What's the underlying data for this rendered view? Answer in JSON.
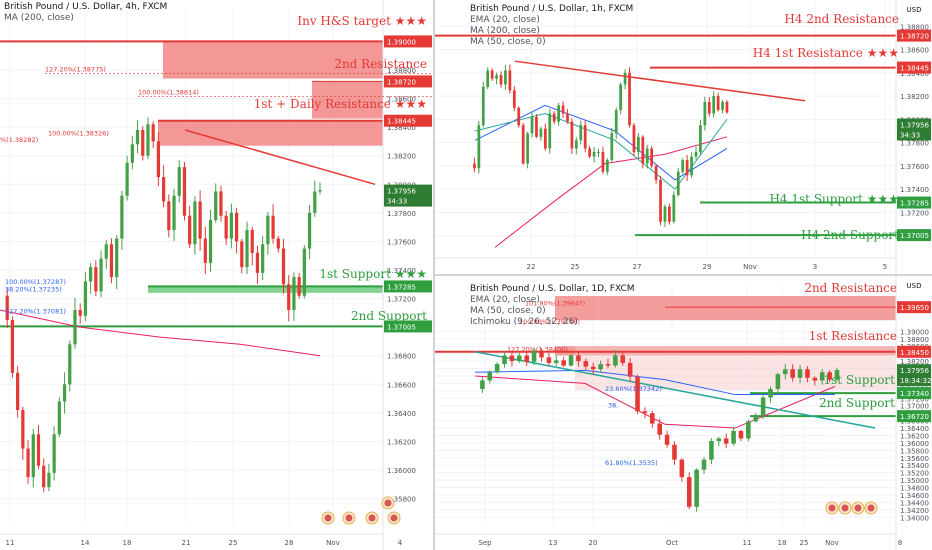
{
  "colors": {
    "up": "#43a047",
    "down": "#e53935",
    "resistance": "#e53935",
    "support": "#2e9e3f",
    "zone_red": "#f28c8c",
    "zone_green": "#7bd08a",
    "ema": "#2962ff",
    "ma200": "#e91e63",
    "ma50": "#26a69a",
    "price_tag": "#2e7d32"
  },
  "usd_label": "USD",
  "left": {
    "symbol": "British Pound / U.S. Dollar, 4h, FXCM",
    "indicator": "MA (200, close)",
    "labels": {
      "target": "Inv H&S target ★★★",
      "res2": "2nd Resistance",
      "res1": "1st + Daily Resistance ★★★",
      "sup1": "1st Support ★★★",
      "sup2": "2nd Support"
    },
    "fib_labels": [
      "127.20%(1.38775)",
      "100.00%(1.38614)",
      "100.00%(1.38326)",
      "%(1.38282)",
      "38.20%(1.37235)",
      "100.00%(1.37287)",
      "127.20%(1.37081)"
    ],
    "levels_text": {
      "target": "1.39000",
      "res2": "1.38720",
      "res1": "1.38445",
      "price": "1.37956",
      "countdown": "34:33",
      "sup1": "1.37285",
      "sup2": "1.37005"
    },
    "axis_ticks": [
      "1.39000",
      "1.38800",
      "1.38600",
      "1.38400",
      "1.38200",
      "1.38000",
      "1.37800",
      "1.37600",
      "1.37400",
      "1.37200",
      "1.37000",
      "1.36800",
      "1.36600",
      "1.36400",
      "1.36200",
      "1.36000",
      "1.35800"
    ],
    "time_ticks": [
      "11",
      "14",
      "18",
      "21",
      "25",
      "28",
      "Nov",
      "4"
    ],
    "chart_data": {
      "type": "candlestick",
      "title": "British Pound / U.S. Dollar, 4h, FXCM",
      "ylim": [
        1.3565,
        1.3915
      ],
      "levels": {
        "target": 1.39,
        "res2": 1.3872,
        "res1": 1.38445,
        "sup1": 1.37285,
        "sup2": 1.37005,
        "price": 1.37956
      },
      "closes": [
        1.3722,
        1.3705,
        1.3668,
        1.3642,
        1.3615,
        1.3595,
        1.3625,
        1.3603,
        1.3588,
        1.3598,
        1.3625,
        1.3648,
        1.366,
        1.3688,
        1.3712,
        1.3708,
        1.3732,
        1.3742,
        1.3725,
        1.3748,
        1.3758,
        1.3735,
        1.3762,
        1.3792,
        1.3815,
        1.3828,
        1.3838,
        1.382,
        1.3842,
        1.383,
        1.3805,
        1.3788,
        1.3768,
        1.3792,
        1.3812,
        1.3778,
        1.3758,
        1.3788,
        1.3762,
        1.3745,
        1.3775,
        1.3795,
        1.3778,
        1.3762,
        1.378,
        1.376,
        1.3742,
        1.3768,
        1.3752,
        1.3738,
        1.3758,
        1.3778,
        1.3762,
        1.3755,
        1.373,
        1.3712,
        1.3735,
        1.3722,
        1.3755,
        1.378,
        1.3795,
        1.3796
      ]
    }
  },
  "top_right": {
    "symbol": "British Pound / U.S. Dollar, 1h, FXCM",
    "indicators": [
      "EMA (20, close)",
      "MA (200, close)",
      "MA (50, close, 0)"
    ],
    "labels": {
      "res2": "H4 2nd Resistance",
      "res1": "H4 1st Resistance ★★★",
      "sup1": "H4 1st Support ★★★",
      "sup2": "H4 2nd Support"
    },
    "levels_text": {
      "res2": "1.38720",
      "res1": "1.38445",
      "price": "1.37956",
      "countdown": "34:33",
      "sup1": "1.37285",
      "sup2": "1.37005"
    },
    "axis_ticks": [
      "1.38800",
      "1.38600",
      "1.38400",
      "1.38200",
      "1.38000",
      "1.37800",
      "1.37600",
      "1.37400",
      "1.37200",
      "1.37000"
    ],
    "time_ticks": [
      "22",
      "25",
      "27",
      "29",
      "Nov",
      "3",
      "5"
    ],
    "chart_data": {
      "type": "candlestick",
      "title": "British Pound / U.S. Dollar, 1h, FXCM",
      "ylim": [
        1.3686,
        1.3894
      ],
      "levels": {
        "res2": 1.3872,
        "res1": 1.38445,
        "sup1": 1.37285,
        "sup2": 1.37005,
        "price": 1.37956
      },
      "closes": [
        1.3762,
        1.3758,
        1.3795,
        1.3828,
        1.3842,
        1.3835,
        1.3838,
        1.383,
        1.3842,
        1.3825,
        1.381,
        1.3795,
        1.3762,
        1.3788,
        1.3802,
        1.3785,
        1.3792,
        1.3775,
        1.3805,
        1.3798,
        1.3812,
        1.3805,
        1.3798,
        1.3775,
        1.3782,
        1.3795,
        1.3775,
        1.3768,
        1.3772,
        1.3772,
        1.3755,
        1.3765,
        1.3788,
        1.3808,
        1.383,
        1.384,
        1.3795,
        1.3772,
        1.3785,
        1.3762,
        1.3775,
        1.376,
        1.3748,
        1.3712,
        1.3725,
        1.3712,
        1.3735,
        1.3755,
        1.3765,
        1.3752,
        1.3768,
        1.3772,
        1.3795,
        1.3815,
        1.3805,
        1.382,
        1.3808,
        1.3815,
        1.3806
      ]
    }
  },
  "bottom_right": {
    "symbol": "British Pound / U.S. Dollar, 1D, FXCM",
    "indicators": [
      "EMA (20, close)",
      "MA (50, close, 0)",
      "Ichimoku (9, 26, 52, 26)"
    ],
    "labels": {
      "res2": "2nd Resistance",
      "res1": "1st Resistance",
      "sup1": "1st Support",
      "sup2": "2nd Support"
    },
    "fib_labels": [
      "101.80%(1.3964?)",
      "100.00%(1.39148)",
      "127.20%(1.38400)",
      "23.60%(1.37342)",
      "38.",
      "61.80%(1.3535)"
    ],
    "levels_text": {
      "res2": "1.39650",
      "res1": "1.38450",
      "price": "1.37956",
      "countdown": "18:34:32",
      "sup1": "1.37340",
      "sup2": "1.36720"
    },
    "axis_ticks": [
      "1.39000",
      "1.38800",
      "1.38600",
      "1.38400",
      "1.38200",
      "1.38000",
      "1.37800",
      "1.37600",
      "1.37400",
      "1.37200",
      "1.37000",
      "1.36800",
      "1.36600",
      "1.36400",
      "1.36200",
      "1.36000",
      "1.35800",
      "1.35600",
      "1.35400",
      "1.35200",
      "1.35000",
      "1.34800",
      "1.34600",
      "1.34400",
      "1.34200",
      "1.34000"
    ],
    "time_ticks": [
      "Sep",
      "13",
      "20",
      "Oct",
      "11",
      "18",
      "25",
      "Nov",
      "8"
    ],
    "chart_data": {
      "type": "candlestick",
      "title": "British Pound / U.S. Dollar, 1D, FXCM",
      "ylim": [
        1.339,
        1.3995
      ],
      "levels": {
        "res2": 1.3965,
        "res1": 1.3845,
        "sup1": 1.3734,
        "sup2": 1.3672,
        "price": 1.37956
      },
      "closes": [
        1.3745,
        1.3768,
        1.379,
        1.3812,
        1.3835,
        1.382,
        1.3835,
        1.3818,
        1.3848,
        1.383,
        1.3815,
        1.3822,
        1.3808,
        1.3835,
        1.382,
        1.3805,
        1.3798,
        1.3812,
        1.3808,
        1.3835,
        1.3815,
        1.3778,
        1.3685,
        1.368,
        1.3652,
        1.3622,
        1.3595,
        1.3555,
        1.3508,
        1.3428,
        1.3528,
        1.3555,
        1.3605,
        1.3612,
        1.3598,
        1.3632,
        1.3612,
        1.3658,
        1.3675,
        1.3722,
        1.3745,
        1.3785,
        1.3798,
        1.3775,
        1.3798,
        1.3775,
        1.3768,
        1.379,
        1.377,
        1.3796
      ]
    }
  }
}
